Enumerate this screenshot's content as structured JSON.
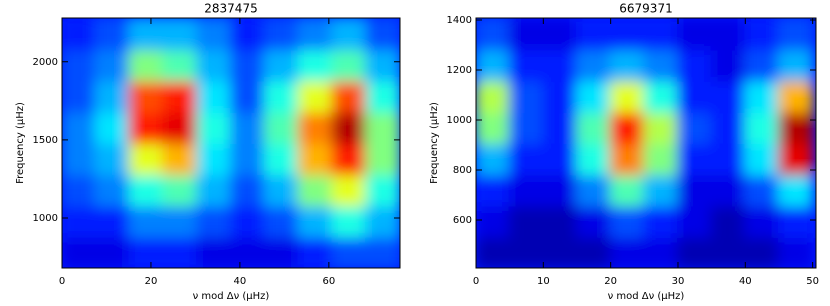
{
  "chart_data": [
    {
      "type": "heatmap",
      "title": "2837475",
      "xlabel": "ν mod Δν (μHz)",
      "ylabel": "Frequency (μHz)",
      "xlim": [
        0,
        76
      ],
      "ylim": [
        680,
        2280
      ],
      "xticks": [
        0,
        20,
        40,
        60
      ],
      "yticks": [
        1000,
        1500,
        2000
      ],
      "x": [
        3.8,
        11.4,
        19,
        26.6,
        34.2,
        41.8,
        49.4,
        57,
        64.6,
        72.2
      ],
      "y": [
        780,
        980,
        1180,
        1380,
        1580,
        1780,
        1980,
        2180
      ],
      "z": [
        [
          0.1,
          0.1,
          0.15,
          0.15,
          0.1,
          0.1,
          0.1,
          0.15,
          0.2,
          0.2
        ],
        [
          0.15,
          0.15,
          0.25,
          0.25,
          0.2,
          0.15,
          0.2,
          0.3,
          0.4,
          0.3
        ],
        [
          0.2,
          0.25,
          0.4,
          0.45,
          0.3,
          0.2,
          0.3,
          0.5,
          0.6,
          0.4
        ],
        [
          0.25,
          0.3,
          0.6,
          0.7,
          0.35,
          0.25,
          0.4,
          0.7,
          0.85,
          0.5
        ],
        [
          0.25,
          0.35,
          0.85,
          0.9,
          0.4,
          0.25,
          0.45,
          0.75,
          0.95,
          0.5
        ],
        [
          0.2,
          0.3,
          0.8,
          0.85,
          0.35,
          0.2,
          0.4,
          0.6,
          0.8,
          0.4
        ],
        [
          0.2,
          0.25,
          0.5,
          0.45,
          0.3,
          0.2,
          0.3,
          0.4,
          0.45,
          0.3
        ],
        [
          0.15,
          0.2,
          0.3,
          0.3,
          0.25,
          0.15,
          0.2,
          0.25,
          0.3,
          0.2
        ]
      ],
      "colormap": "jet"
    },
    {
      "type": "heatmap",
      "title": "6679371",
      "xlabel": "ν mod Δν (μHz)",
      "ylabel": "Frequency (μHz)",
      "xlim": [
        0,
        50.5
      ],
      "ylim": [
        408,
        1408
      ],
      "xticks": [
        0,
        10,
        20,
        30,
        40,
        50
      ],
      "yticks": [
        600,
        800,
        1000,
        1200,
        1400
      ],
      "x": [
        2.5,
        7.5,
        12.5,
        17.5,
        22.5,
        27.5,
        32.5,
        37.5,
        42.5,
        47.5
      ],
      "y": [
        470,
        595,
        720,
        845,
        970,
        1095,
        1220,
        1345
      ],
      "z": [
        [
          0.05,
          0.05,
          0.05,
          0.05,
          0.1,
          0.1,
          0.05,
          0.05,
          0.05,
          0.1
        ],
        [
          0.1,
          0.05,
          0.05,
          0.1,
          0.2,
          0.15,
          0.1,
          0.05,
          0.1,
          0.15
        ],
        [
          0.15,
          0.1,
          0.1,
          0.25,
          0.45,
          0.3,
          0.1,
          0.1,
          0.2,
          0.35
        ],
        [
          0.3,
          0.15,
          0.15,
          0.4,
          0.75,
          0.5,
          0.15,
          0.15,
          0.35,
          0.9
        ],
        [
          0.5,
          0.2,
          0.15,
          0.45,
          0.85,
          0.55,
          0.2,
          0.15,
          0.4,
          0.95
        ],
        [
          0.55,
          0.2,
          0.15,
          0.35,
          0.6,
          0.4,
          0.15,
          0.15,
          0.35,
          0.7
        ],
        [
          0.3,
          0.15,
          0.15,
          0.25,
          0.3,
          0.25,
          0.15,
          0.1,
          0.2,
          0.3
        ],
        [
          0.2,
          0.1,
          0.1,
          0.15,
          0.15,
          0.15,
          0.1,
          0.1,
          0.15,
          0.2
        ]
      ],
      "colormap": "jet"
    }
  ]
}
